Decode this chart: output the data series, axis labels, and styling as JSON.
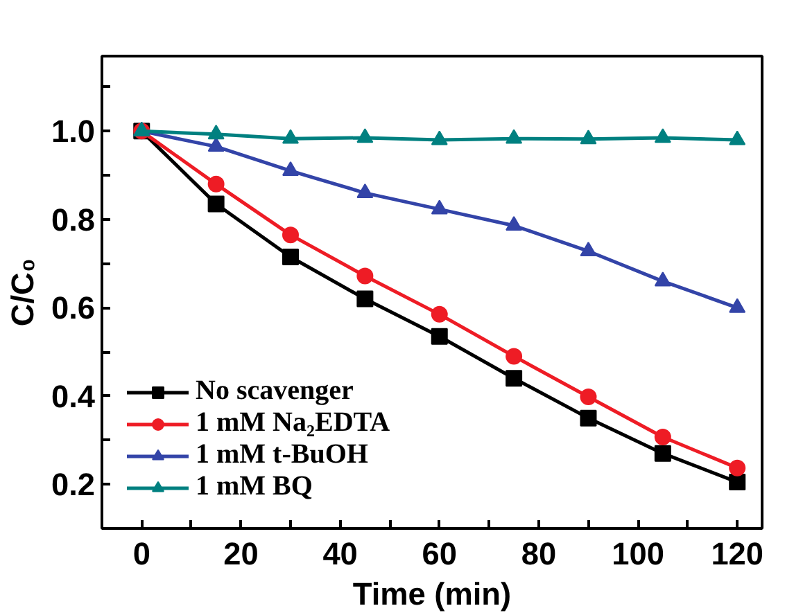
{
  "chart_data": {
    "type": "line",
    "xlabel": "Time (min)",
    "ylabel": "C/C₀",
    "x": [
      0,
      15,
      30,
      45,
      60,
      75,
      90,
      105,
      120
    ],
    "series": [
      {
        "name": "No scavenger",
        "color": "#000000",
        "marker": "square",
        "values": [
          1.0,
          0.835,
          0.715,
          0.62,
          0.535,
          0.44,
          0.35,
          0.27,
          0.205
        ]
      },
      {
        "name": "1 mM Na₂EDTA",
        "color": "#ee1c25",
        "marker": "circle",
        "values": [
          1.0,
          0.88,
          0.765,
          0.672,
          0.585,
          0.49,
          0.398,
          0.307,
          0.237
        ]
      },
      {
        "name": "1 mM t-BuOH",
        "color": "#3344a8",
        "marker": "triangle",
        "values": [
          1.0,
          0.965,
          0.91,
          0.86,
          0.823,
          0.786,
          0.728,
          0.66,
          0.6
        ]
      },
      {
        "name": "1 mM BQ",
        "color": "#008080",
        "marker": "triangle",
        "values": [
          1.0,
          0.993,
          0.983,
          0.985,
          0.98,
          0.983,
          0.982,
          0.985,
          0.98
        ]
      }
    ],
    "xlim": [
      -8,
      125
    ],
    "ylim": [
      0.1,
      1.17
    ],
    "xticks": [
      0,
      {
        "value": 10,
        "label": null
      },
      20,
      {
        "value": 30,
        "label": null
      },
      40,
      {
        "value": 50,
        "label": null
      },
      60,
      {
        "value": 70,
        "label": null
      },
      80,
      {
        "value": 90,
        "label": null
      },
      100,
      {
        "value": 110,
        "label": null
      },
      120
    ],
    "yticks": [
      {
        "value": 0.2,
        "label": "0.2"
      },
      {
        "value": 0.3,
        "label": null
      },
      {
        "value": 0.4,
        "label": "0.4"
      },
      {
        "value": 0.5,
        "label": null
      },
      {
        "value": 0.6,
        "label": "0.6"
      },
      {
        "value": 0.7,
        "label": null
      },
      {
        "value": 0.8,
        "label": "0.8"
      },
      {
        "value": 0.9,
        "label": null
      },
      {
        "value": 1.0,
        "label": "1.0"
      },
      {
        "value": 1.1,
        "label": null
      }
    ],
    "legend": "bottom left",
    "grid": false,
    "line_style": "solid"
  }
}
